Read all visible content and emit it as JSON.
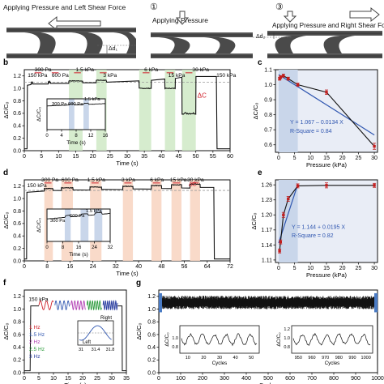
{
  "top_panel": {
    "title_left": "Applying Pressure and Left Shear Force",
    "title_mid": "Applying Pressure",
    "title_right": "Applying Pressure and Right Shear Force",
    "num_mid": "①",
    "num_right": "③",
    "delta1": "Δd₁",
    "delta2": "Δd₂"
  },
  "panel_labels": {
    "b": "b",
    "c": "c",
    "d": "d",
    "e": "e",
    "f": "f",
    "g": "g"
  },
  "axis_text": {
    "ylabel": "ΔC/C₀",
    "time_label": "Time (s)",
    "pressure_label": "Pressure (kPa)",
    "cycles_label": "Cycles"
  },
  "colors": {
    "green_band": "#cfe9c6",
    "blue_band": "#c9d6ea",
    "orange_band": "#f8d6c3",
    "curve": "#111111",
    "fit": "#2f56b0",
    "marker": "#c21f1f",
    "annot_red": "#d0202a",
    "dashed": "#9a9a9a",
    "plot_bg": "#e9edf6"
  },
  "chart_data": [
    {
      "id": "b",
      "type": "line",
      "xlabel": "Time (s)",
      "ylabel": "ΔC/C₀",
      "xlim": [
        0,
        60
      ],
      "ylim": [
        0,
        1.3
      ],
      "xticks": [
        0,
        5,
        10,
        15,
        20,
        25,
        30,
        35,
        40,
        45,
        50,
        55,
        60
      ],
      "yticks": [
        0.0,
        0.2,
        0.4,
        0.6,
        0.8,
        1.0,
        1.2
      ],
      "pressure_labels": [
        "150 kPa",
        "300 Pa",
        "600 Pa",
        "1.5 kPa",
        "3 kPa",
        "6 kPa",
        "15 kPa",
        "30 kPa",
        "150 kPa"
      ],
      "annotation": "ΔC",
      "shaded": [
        [
          13,
          17
        ],
        [
          21,
          24
        ],
        [
          33.5,
          37
        ],
        [
          41,
          44
        ],
        [
          46,
          50
        ]
      ],
      "steps": [
        [
          2,
          2.4,
          1.06,
          1.09
        ],
        [
          7,
          7.6,
          1.07,
          1.1
        ],
        [
          13,
          17,
          1.08,
          1.12
        ],
        [
          21,
          24,
          1.09,
          1.13
        ],
        [
          33.5,
          37,
          1.12,
          1.0
        ],
        [
          41,
          44,
          1.15,
          1.0
        ],
        [
          46,
          50,
          1.18,
          0.6
        ]
      ],
      "inset": {
        "xlabel": "Time (s)",
        "ylabel": "ΔC/C₀",
        "xlim": [
          0,
          16
        ],
        "ylim": [
          0,
          1.3
        ],
        "xticks": [
          0,
          4,
          8,
          12,
          16
        ],
        "labels": [
          "300 Pa",
          "600 Pa",
          "1.5 kPa"
        ]
      }
    },
    {
      "id": "c",
      "type": "scatter",
      "xlabel": "Pressure (kPa)",
      "ylabel": "ΔC/C₀",
      "xlim": [
        -1,
        31
      ],
      "ylim": [
        0.55,
        1.1
      ],
      "xticks": [
        0,
        5,
        10,
        15,
        20,
        25,
        30
      ],
      "yticks": [
        0.6,
        0.7,
        0.8,
        0.9,
        1.0,
        1.1
      ],
      "x": [
        0.3,
        0.6,
        1.5,
        3,
        6,
        15,
        30
      ],
      "y": [
        1.04,
        1.05,
        1.06,
        1.04,
        1.0,
        0.95,
        0.59
      ],
      "yerr": [
        0.01,
        0.01,
        0.01,
        0.01,
        0.01,
        0.015,
        0.02
      ],
      "fit": {
        "x": [
          0,
          30
        ],
        "y": [
          1.067,
          0.665
        ]
      },
      "fit_equation": "Y = 1.067 – 0.0134 X",
      "r_square": "R-Square = 0.84"
    },
    {
      "id": "d",
      "type": "line",
      "xlabel": "Time (s)",
      "ylabel": "ΔC/C₀",
      "xlim": [
        0,
        72
      ],
      "ylim": [
        0,
        1.3
      ],
      "xticks": [
        0,
        8,
        16,
        24,
        32,
        40,
        48,
        56,
        64,
        72
      ],
      "yticks": [
        0.0,
        0.2,
        0.4,
        0.6,
        0.8,
        1.0,
        1.2
      ],
      "pressure_labels": [
        "150 kPa",
        "300 Pa",
        "600 Pa",
        "1.5 kPa",
        "3 kPa",
        "6 kPa",
        "15 kPa",
        "30 kPa"
      ],
      "annotation": "ΔC",
      "shaded": [
        [
          7,
          10
        ],
        [
          13,
          17
        ],
        [
          23,
          27
        ],
        [
          34.5,
          38
        ],
        [
          44.5,
          48
        ],
        [
          51.5,
          55
        ],
        [
          58,
          61.5
        ]
      ],
      "inset": {
        "xlabel": "Time (s)",
        "ylabel": "ΔC/C₀",
        "xlim": [
          0,
          32
        ],
        "ylim": [
          0,
          1.3
        ],
        "xticks": [
          0,
          8,
          16,
          24,
          32
        ],
        "labels": [
          "300 Pa",
          "600 Pa",
          "1.5 kPa"
        ]
      }
    },
    {
      "id": "e",
      "type": "scatter",
      "xlabel": "Pressure (kPa)",
      "ylabel": "ΔC/C₀",
      "xlim": [
        -1,
        31
      ],
      "ylim": [
        1.105,
        1.27
      ],
      "xticks": [
        0,
        5,
        10,
        15,
        20,
        25,
        30
      ],
      "yticks": [
        1.11,
        1.14,
        1.17,
        1.2,
        1.23,
        1.26
      ],
      "x": [
        0.3,
        0.6,
        1.5,
        3,
        6,
        15,
        30
      ],
      "y": [
        1.128,
        1.146,
        1.2,
        1.232,
        1.258,
        1.259,
        1.259
      ],
      "yerr": [
        0.004,
        0.004,
        0.005,
        0.005,
        0.004,
        0.005,
        0.004
      ],
      "fit": {
        "x": [
          0,
          6
        ],
        "y": [
          1.144,
          1.261
        ]
      },
      "fit_equation": "Y = 1.144 + 0.0195 X",
      "r_square": "R-Square = 0.82"
    },
    {
      "id": "f",
      "type": "line",
      "xlabel": "Time (s)",
      "ylabel": "ΔC/C₀",
      "xlim": [
        0,
        35
      ],
      "ylim": [
        0,
        1.3
      ],
      "xticks": [
        0,
        5,
        10,
        15,
        20,
        25,
        30,
        35
      ],
      "yticks": [
        0.0,
        0.2,
        0.4,
        0.6,
        0.8,
        1.0,
        1.2
      ],
      "label": "150 kPa",
      "series": [
        {
          "name": "1 Hz",
          "color": "#d0202a"
        },
        {
          "name": "1.5 Hz",
          "color": "#2f56b0"
        },
        {
          "name": "2 Hz",
          "color": "#b23fb3"
        },
        {
          "name": "2.5 Hz",
          "color": "#2a9a3a"
        },
        {
          "name": "3 Hz",
          "color": "#2a3ea0"
        }
      ],
      "inset": {
        "xticks": [
          "31",
          "31.4",
          "31.8"
        ],
        "left": "Left",
        "right": "Right"
      }
    },
    {
      "id": "g",
      "type": "line",
      "xlabel": "Cycles",
      "ylabel": "ΔC/C₀",
      "xlim": [
        0,
        1000
      ],
      "ylim": [
        0,
        1.3
      ],
      "xticks": [
        0,
        100,
        200,
        300,
        400,
        500,
        600,
        700,
        800,
        900,
        1000
      ],
      "yticks": [
        0.0,
        0.2,
        0.4,
        0.6,
        0.8,
        1.0,
        1.2
      ],
      "insets": [
        {
          "xlabel": "Cycles",
          "xticks": [
            "10",
            "20",
            "30",
            "40",
            "50"
          ],
          "yticks": [
            "0.8",
            "1.0"
          ]
        },
        {
          "xlabel": "Cycles",
          "xticks": [
            "950",
            "960",
            "970",
            "980",
            "990",
            "1000"
          ],
          "yticks": [
            "0.8",
            "1.0",
            "1.2"
          ]
        }
      ]
    }
  ]
}
